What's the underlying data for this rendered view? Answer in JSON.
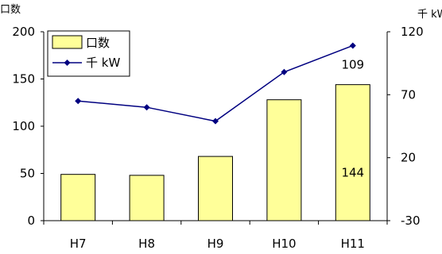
{
  "chart_data": {
    "type": "bar+line",
    "categories": [
      "H7",
      "H8",
      "H9",
      "H10",
      "H11"
    ],
    "series": [
      {
        "name": "口数",
        "type": "bar",
        "axis": "left",
        "values": [
          49,
          48,
          68,
          128,
          144
        ],
        "color": "#ffff99",
        "stroke": "#000000"
      },
      {
        "name": "千 kW",
        "type": "line",
        "axis": "right",
        "values": [
          65,
          60,
          49,
          88,
          109
        ],
        "color": "#000080"
      }
    ],
    "left_axis": {
      "label": "口数",
      "ylim": [
        0,
        200
      ],
      "ticks": [
        0,
        50,
        100,
        150,
        200
      ]
    },
    "right_axis": {
      "label": "千 kW",
      "ylim": [
        -30,
        120
      ],
      "ticks": [
        -30,
        20,
        70,
        120
      ]
    },
    "data_labels": [
      {
        "series": 0,
        "index": 4,
        "text": "144"
      },
      {
        "series": 1,
        "index": 4,
        "text": "109"
      }
    ],
    "legend": {
      "placement": "top-left",
      "entries": [
        "口数",
        "千 kW"
      ]
    },
    "grid": false
  }
}
